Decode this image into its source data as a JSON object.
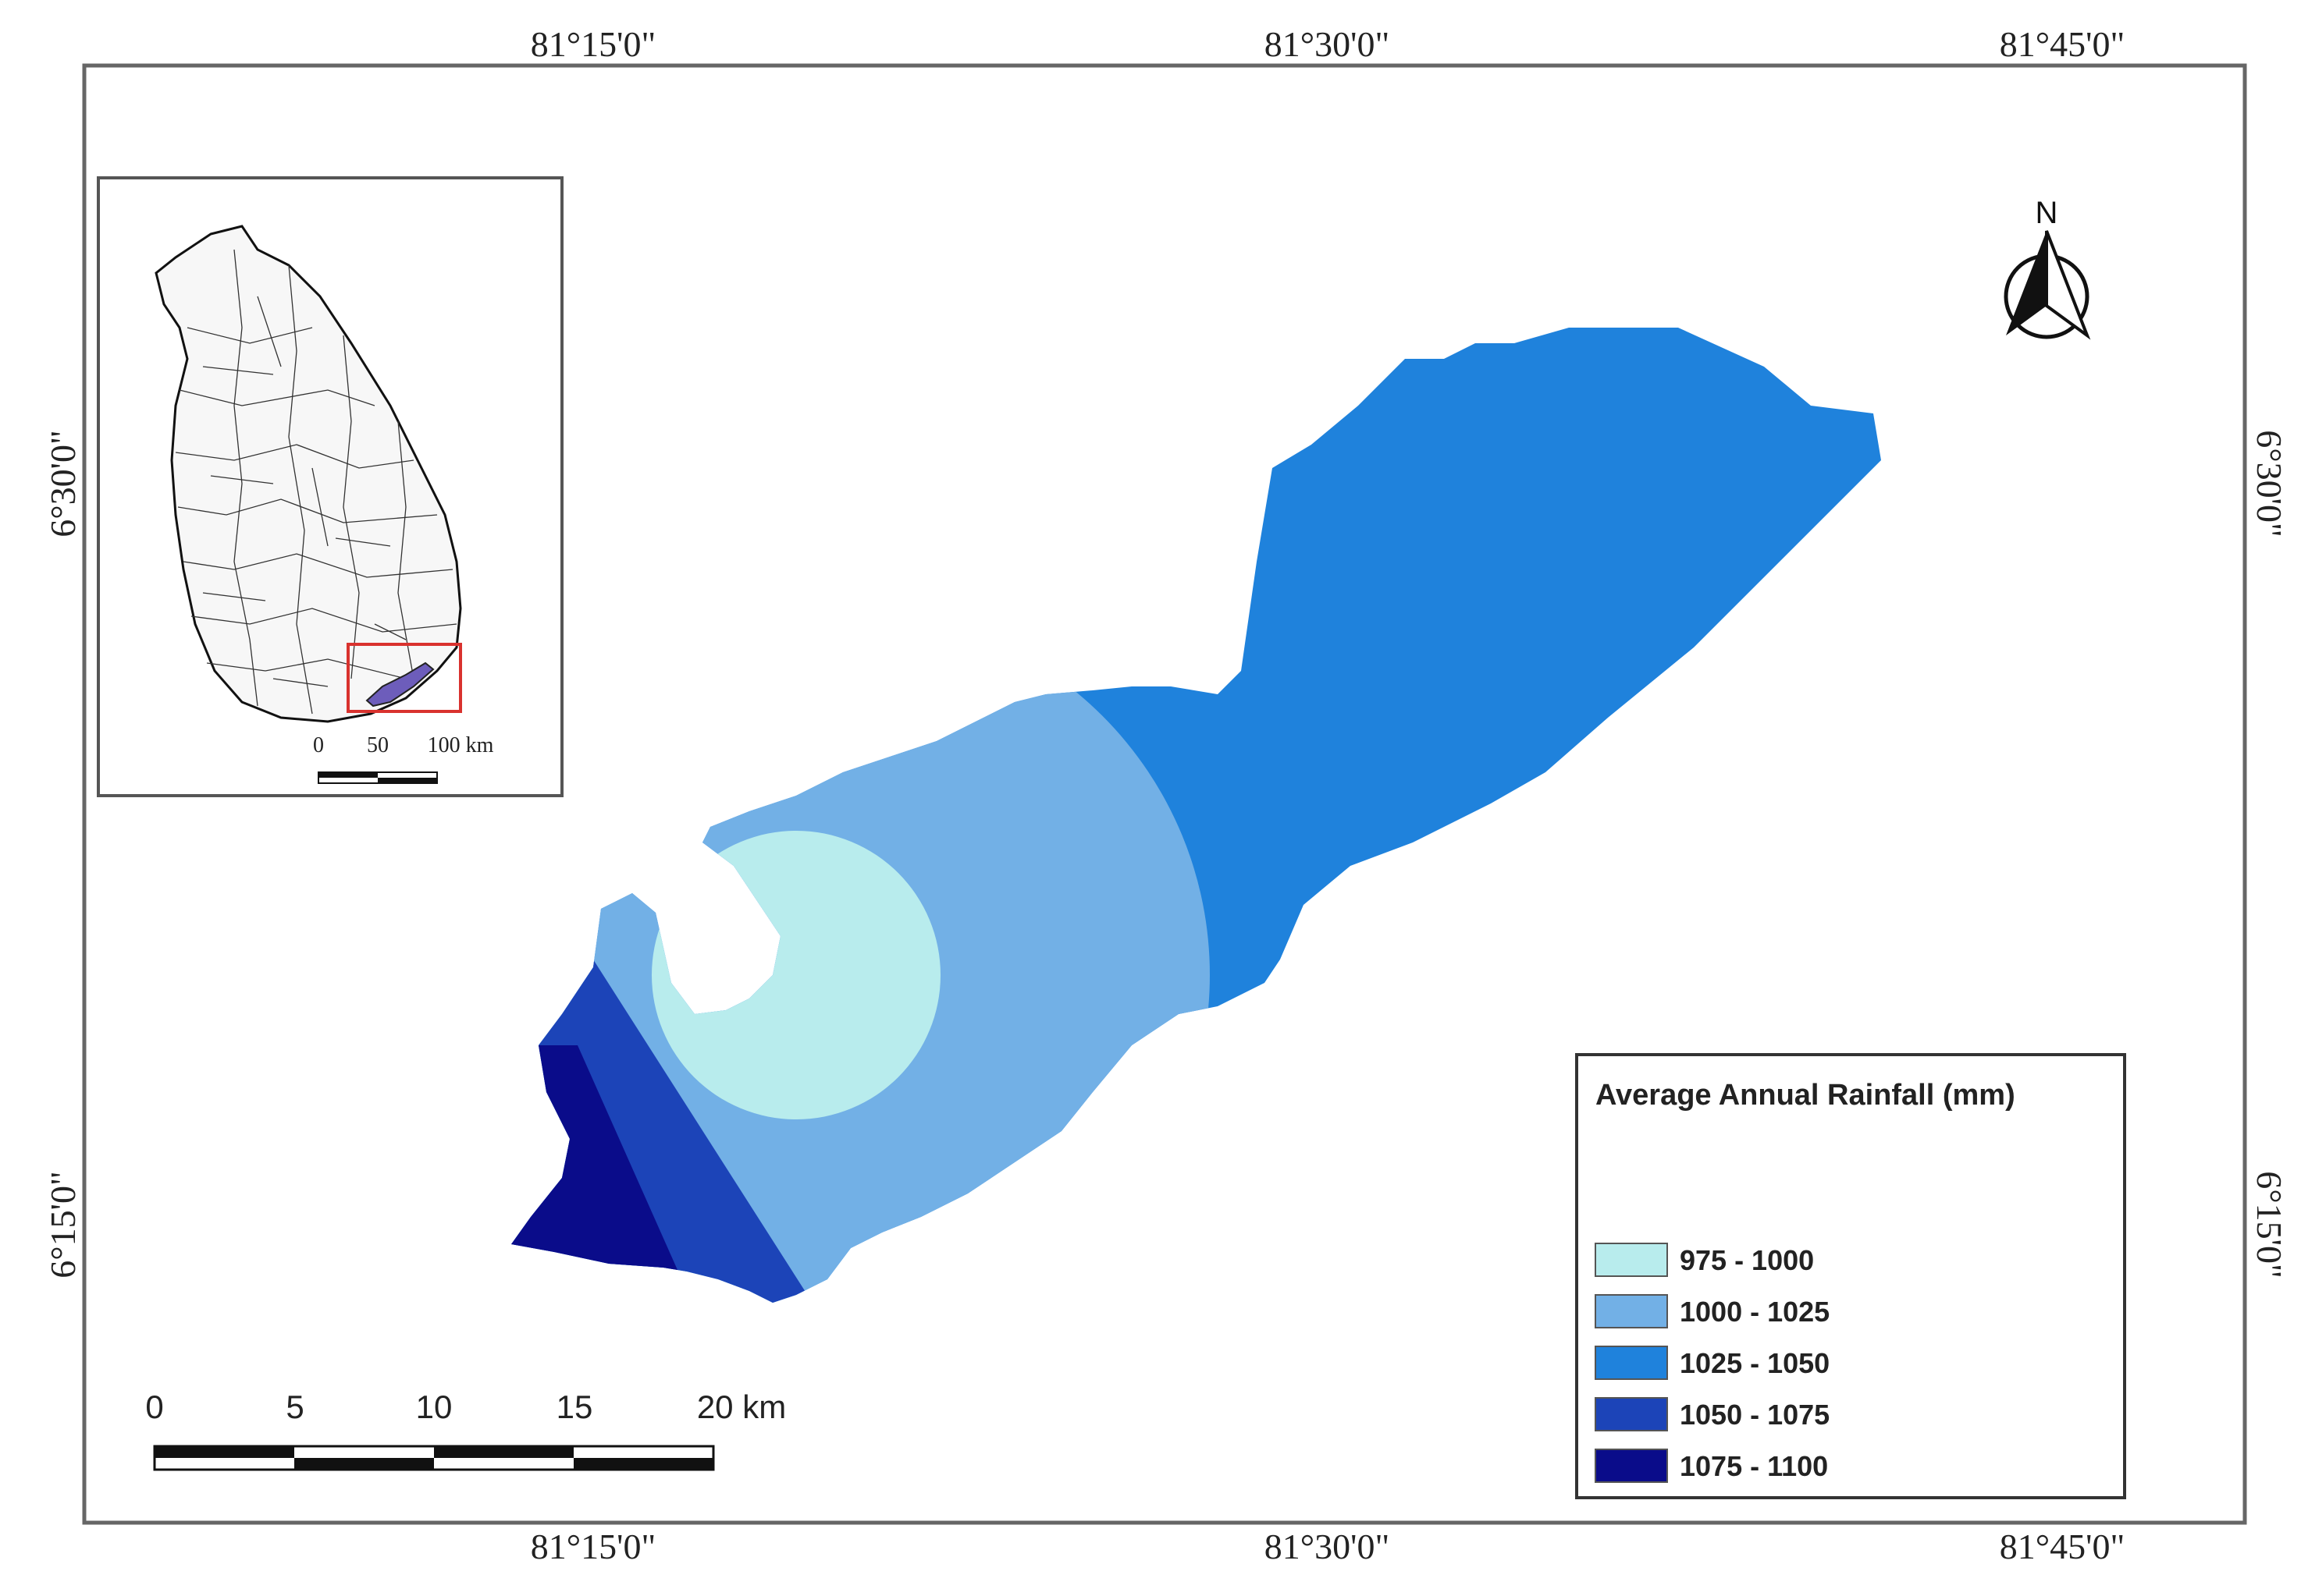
{
  "graticule": {
    "top": [
      "81°15'0\"",
      "81°30'0\"",
      "81°45'0\""
    ],
    "bottom": [
      "81°15'0\"",
      "81°30'0\"",
      "81°45'0\""
    ],
    "left": [
      "6°30'0\"",
      "6°15'0\""
    ],
    "right": [
      "6°30'0\"",
      "6°15'0\""
    ]
  },
  "north_arrow": {
    "label": "N"
  },
  "legend": {
    "title": "Average Annual Rainfall (mm)",
    "classes": [
      {
        "label": "975 - 1000",
        "color": "#b8eced"
      },
      {
        "label": "1000 - 1025",
        "color": "#72b0e6"
      },
      {
        "label": "1025 - 1050",
        "color": "#1f82dc"
      },
      {
        "label": "1050 - 1075",
        "color": "#1c44b8"
      },
      {
        "label": "1075 - 1100",
        "color": "#0a0c8a"
      }
    ]
  },
  "scale_bar": {
    "ticks": [
      "0",
      "5",
      "10",
      "15",
      "20 km"
    ]
  },
  "inset": {
    "scale_ticks": [
      "0",
      "50",
      "100 km"
    ],
    "highlight_color": "#d9322e"
  }
}
